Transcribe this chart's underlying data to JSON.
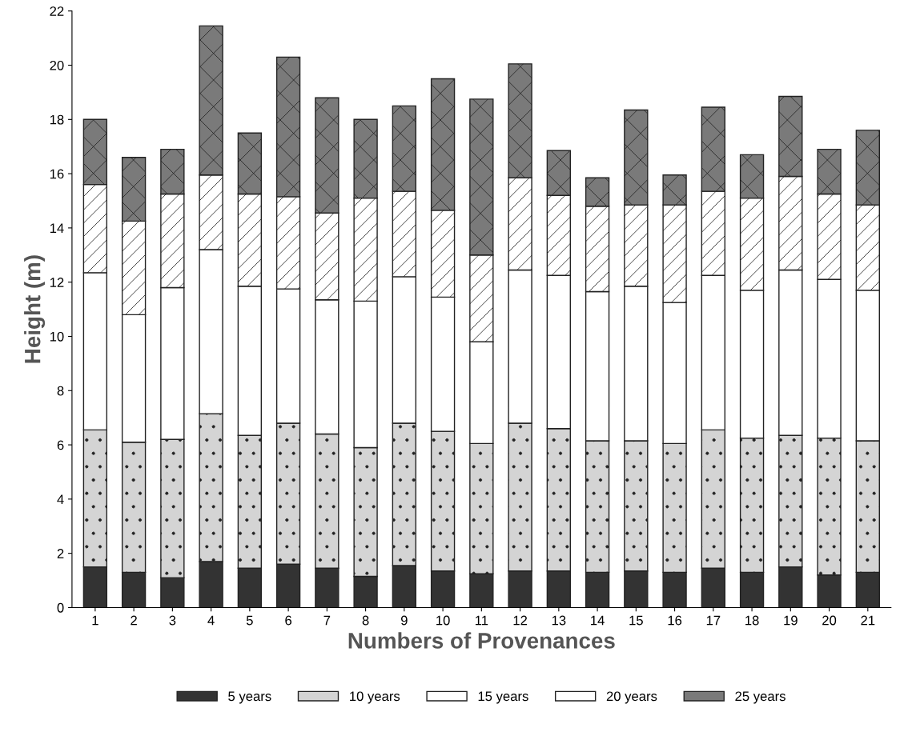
{
  "chart_data": {
    "type": "bar",
    "stacked": true,
    "xlabel": "Numbers of Provenances",
    "ylabel": "Height (m)",
    "categories": [
      "1",
      "2",
      "3",
      "4",
      "5",
      "6",
      "7",
      "8",
      "9",
      "10",
      "11",
      "12",
      "13",
      "14",
      "15",
      "16",
      "17",
      "18",
      "19",
      "20",
      "21"
    ],
    "series": [
      {
        "name": "5 years",
        "color": "#333333",
        "values": [
          1.5,
          1.3,
          1.1,
          1.7,
          1.45,
          1.6,
          1.45,
          1.15,
          1.55,
          1.35,
          1.25,
          1.35,
          1.35,
          1.3,
          1.35,
          1.3,
          1.45,
          1.3,
          1.5,
          1.2,
          1.3
        ]
      },
      {
        "name": "10 years",
        "color": "#d4d4d4",
        "values": [
          5.05,
          4.8,
          5.1,
          5.45,
          4.9,
          5.2,
          4.95,
          4.75,
          5.25,
          5.15,
          4.8,
          5.45,
          5.25,
          4.85,
          4.8,
          4.75,
          5.1,
          4.95,
          4.85,
          5.05,
          4.85
        ]
      },
      {
        "name": "15 years",
        "color": "#ffffff",
        "values": [
          5.8,
          4.7,
          5.6,
          6.05,
          5.5,
          4.95,
          4.95,
          5.4,
          5.4,
          4.95,
          3.75,
          5.65,
          5.65,
          5.5,
          5.7,
          5.2,
          5.7,
          5.45,
          6.1,
          5.85,
          5.55
        ]
      },
      {
        "name": "20 years",
        "color": "#ffffff",
        "values": [
          3.25,
          3.45,
          3.45,
          2.75,
          3.4,
          3.4,
          3.2,
          3.8,
          3.15,
          3.2,
          3.2,
          3.4,
          2.95,
          3.15,
          3.0,
          3.6,
          3.1,
          3.4,
          3.45,
          3.15,
          3.15
        ]
      },
      {
        "name": "25 years",
        "color": "#7a7a7a",
        "values": [
          2.4,
          2.35,
          1.65,
          5.5,
          2.25,
          5.15,
          4.25,
          2.9,
          3.15,
          4.85,
          5.75,
          4.2,
          1.65,
          1.05,
          3.5,
          1.1,
          3.1,
          1.6,
          2.95,
          1.65,
          2.75
        ]
      }
    ],
    "ylim": [
      0,
      22
    ],
    "yticks": [
      0,
      2,
      4,
      6,
      8,
      10,
      12,
      14,
      16,
      18,
      20,
      22
    ],
    "grid": false,
    "legend": "bottom"
  }
}
